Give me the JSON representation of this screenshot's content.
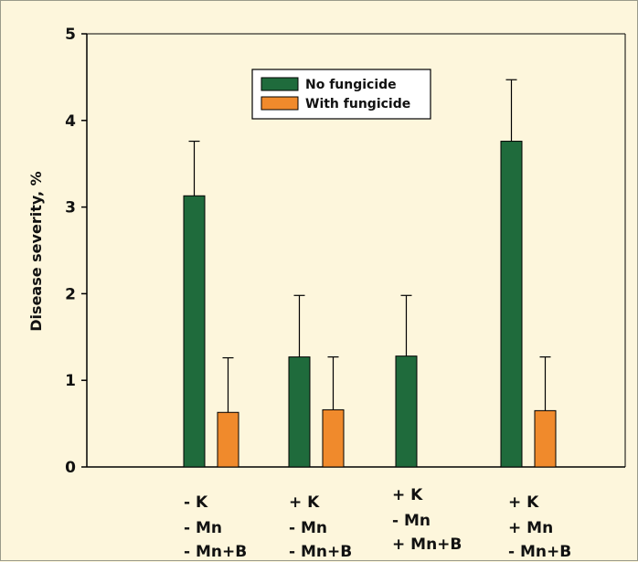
{
  "chart_data": {
    "type": "bar",
    "ylabel": "Disease severity, %",
    "ylim": [
      0,
      5
    ],
    "yticks": [
      "0",
      "1",
      "2",
      "3",
      "4",
      "5"
    ],
    "grid": false,
    "legend_position": "top-center",
    "categories": [
      [
        "- K",
        "- Mn",
        "- Mn+B"
      ],
      [
        "+ K",
        "- Mn",
        "- Mn+B"
      ],
      [
        "+ K",
        "- Mn",
        "+ Mn+B"
      ],
      [
        "+ K",
        "+ Mn",
        "- Mn+B"
      ]
    ],
    "series": [
      {
        "name": "No fungicide",
        "color": "#1f6b3c",
        "values": [
          3.13,
          1.27,
          1.28,
          3.76
        ],
        "error_upper": [
          0.63,
          0.71,
          0.7,
          0.71
        ]
      },
      {
        "name": "With fungicide",
        "color": "#f08a2c",
        "values": [
          0.63,
          0.66,
          0.0,
          0.65
        ],
        "error_upper": [
          0.63,
          0.61,
          0.0,
          0.62
        ]
      }
    ]
  }
}
